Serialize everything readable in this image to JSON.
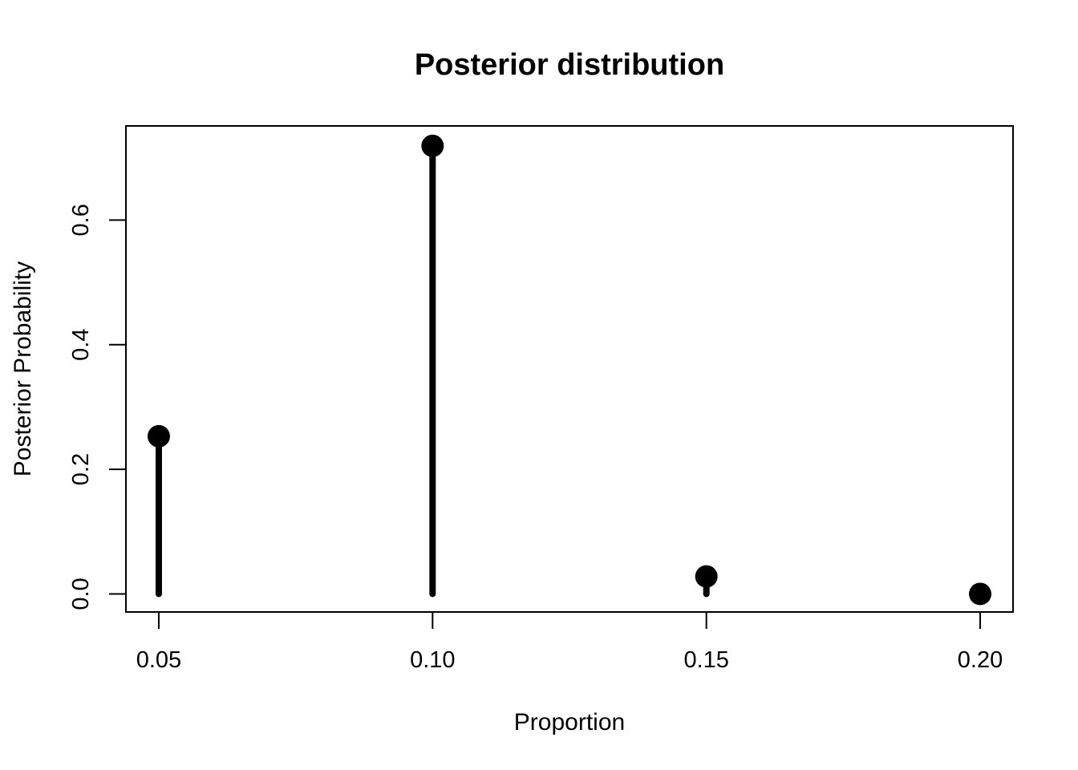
{
  "chart_data": {
    "type": "scatter",
    "style": "lollipop",
    "title": "Posterior distribution",
    "xlabel": "Proportion",
    "ylabel": "Posterior Probability",
    "x": [
      0.05,
      0.1,
      0.15,
      0.2
    ],
    "x_tick_labels": [
      "0.05",
      "0.10",
      "0.15",
      "0.20"
    ],
    "y": [
      0.253,
      0.719,
      0.028,
      0.0
    ],
    "y_ticks": [
      0.0,
      0.2,
      0.4,
      0.6
    ],
    "y_tick_labels": [
      "0.0",
      "0.2",
      "0.4",
      "0.6"
    ],
    "xlim": [
      0.044,
      0.206
    ],
    "ylim": [
      -0.029,
      0.751
    ],
    "grid": false,
    "legend": "none",
    "color": "#000000"
  }
}
